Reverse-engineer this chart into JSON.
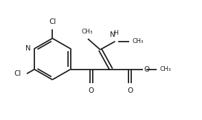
{
  "bg_color": "#ffffff",
  "line_color": "#1a1a1a",
  "line_width": 1.3,
  "figsize": [
    2.94,
    1.76
  ],
  "dpi": 100,
  "xlim": [
    0.0,
    10.0
  ],
  "ylim": [
    0.0,
    6.0
  ]
}
